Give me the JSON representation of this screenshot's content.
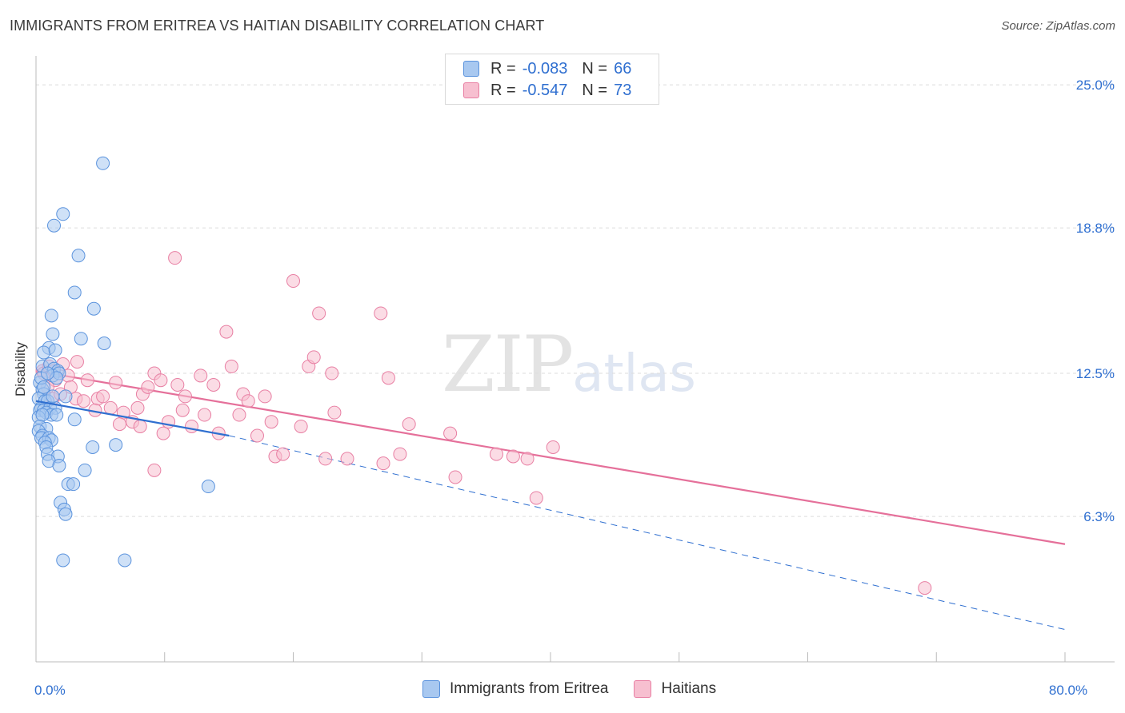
{
  "header": {
    "title": "IMMIGRANTS FROM ERITREA VS HAITIAN DISABILITY CORRELATION CHART",
    "source": "Source: ZipAtlas.com"
  },
  "watermark": {
    "zip": "ZIP",
    "atlas": "atlas"
  },
  "legend": {
    "r_label": "R =",
    "n_label": "N =",
    "rows": [
      {
        "r": "-0.083",
        "n": "66",
        "color": "#a8c8f0"
      },
      {
        "r": "-0.547",
        "n": "73",
        "color": "#f7b8cb"
      }
    ]
  },
  "colors": {
    "eritrea_fill": "#a8c8f0",
    "eritrea_stroke": "#5b93dd",
    "eritrea_line": "#2f6fd0",
    "haitian_fill": "#f7bfd0",
    "haitian_stroke": "#e87fa3",
    "haitian_line": "#e5709a",
    "grid": "#dcdcdc",
    "axis_label": "#2f6fd0"
  },
  "chart_data": {
    "type": "scatter",
    "title": "IMMIGRANTS FROM ERITREA VS HAITIAN DISABILITY CORRELATION CHART",
    "xlabel": "",
    "ylabel": "Disability",
    "xlim": [
      0,
      80
    ],
    "ylim": [
      0,
      26.25
    ],
    "x_tick_labels": [
      {
        "value": 0,
        "label": "0.0%"
      },
      {
        "value": 80,
        "label": "80.0%"
      }
    ],
    "y_ticks": [
      {
        "value": 6.3,
        "label": "6.3%"
      },
      {
        "value": 12.5,
        "label": "12.5%"
      },
      {
        "value": 18.8,
        "label": "18.8%"
      },
      {
        "value": 25.0,
        "label": "25.0%"
      }
    ],
    "grid": true,
    "series": [
      {
        "name": "Immigrants from Eritrea",
        "R": -0.083,
        "N": 66,
        "trend": {
          "x0": 0,
          "y0": 11.3,
          "x1": 15,
          "y1": 9.8,
          "dash_to_x": 80,
          "dash_to_y": 1.4
        },
        "points": [
          [
            5.2,
            21.6
          ],
          [
            2.1,
            19.4
          ],
          [
            1.4,
            18.9
          ],
          [
            3.3,
            17.6
          ],
          [
            3.0,
            16.0
          ],
          [
            4.5,
            15.3
          ],
          [
            1.2,
            15.0
          ],
          [
            1.3,
            14.2
          ],
          [
            3.5,
            14.0
          ],
          [
            1.0,
            13.6
          ],
          [
            5.3,
            13.8
          ],
          [
            0.6,
            13.4
          ],
          [
            1.5,
            13.5
          ],
          [
            0.5,
            12.8
          ],
          [
            1.1,
            12.9
          ],
          [
            1.4,
            12.7
          ],
          [
            1.7,
            12.6
          ],
          [
            1.3,
            12.4
          ],
          [
            1.8,
            12.5
          ],
          [
            1.6,
            12.3
          ],
          [
            0.3,
            12.1
          ],
          [
            0.5,
            11.8
          ],
          [
            0.6,
            11.6
          ],
          [
            0.2,
            11.4
          ],
          [
            0.7,
            11.3
          ],
          [
            0.9,
            11.3
          ],
          [
            2.3,
            11.5
          ],
          [
            0.4,
            11.0
          ],
          [
            0.3,
            10.9
          ],
          [
            0.6,
            10.9
          ],
          [
            1.1,
            11.0
          ],
          [
            1.5,
            11.0
          ],
          [
            0.8,
            10.8
          ],
          [
            1.2,
            10.7
          ],
          [
            0.2,
            10.6
          ],
          [
            0.5,
            10.7
          ],
          [
            3.0,
            10.5
          ],
          [
            0.3,
            10.2
          ],
          [
            0.8,
            10.1
          ],
          [
            0.2,
            10.0
          ],
          [
            0.5,
            9.8
          ],
          [
            0.4,
            9.7
          ],
          [
            1.0,
            9.7
          ],
          [
            1.2,
            9.6
          ],
          [
            0.7,
            9.5
          ],
          [
            0.8,
            9.3
          ],
          [
            4.4,
            9.3
          ],
          [
            6.2,
            9.4
          ],
          [
            0.9,
            9.0
          ],
          [
            1.7,
            8.9
          ],
          [
            1.0,
            8.7
          ],
          [
            1.8,
            8.5
          ],
          [
            3.8,
            8.3
          ],
          [
            2.5,
            7.7
          ],
          [
            2.9,
            7.7
          ],
          [
            13.4,
            7.6
          ],
          [
            1.9,
            6.9
          ],
          [
            2.2,
            6.6
          ],
          [
            2.3,
            6.4
          ],
          [
            2.1,
            4.4
          ],
          [
            6.9,
            4.4
          ],
          [
            0.4,
            12.3
          ],
          [
            0.9,
            12.5
          ],
          [
            1.3,
            11.5
          ],
          [
            1.6,
            10.7
          ],
          [
            0.6,
            11.9
          ]
        ]
      },
      {
        "name": "Haitians",
        "R": -0.547,
        "N": 73,
        "trend": {
          "x0": 0,
          "y0": 12.6,
          "x1": 80,
          "y1": 5.1
        },
        "points": [
          [
            0.5,
            12.6
          ],
          [
            0.6,
            12.5
          ],
          [
            1.0,
            12.8
          ],
          [
            1.4,
            12.6
          ],
          [
            2.1,
            12.9
          ],
          [
            1.5,
            12.2
          ],
          [
            2.5,
            12.4
          ],
          [
            0.9,
            11.9
          ],
          [
            2.7,
            11.9
          ],
          [
            1.3,
            11.4
          ],
          [
            3.1,
            11.4
          ],
          [
            4.0,
            12.2
          ],
          [
            3.7,
            11.3
          ],
          [
            4.8,
            11.4
          ],
          [
            5.2,
            11.5
          ],
          [
            6.2,
            12.1
          ],
          [
            5.8,
            11.0
          ],
          [
            6.8,
            10.8
          ],
          [
            7.5,
            10.4
          ],
          [
            7.9,
            11.0
          ],
          [
            8.3,
            11.6
          ],
          [
            8.7,
            11.9
          ],
          [
            9.2,
            12.5
          ],
          [
            9.7,
            12.2
          ],
          [
            6.5,
            10.3
          ],
          [
            8.1,
            10.2
          ],
          [
            9.9,
            9.9
          ],
          [
            10.3,
            10.4
          ],
          [
            11.0,
            12.0
          ],
          [
            11.6,
            11.5
          ],
          [
            11.4,
            10.9
          ],
          [
            12.1,
            10.2
          ],
          [
            12.8,
            12.4
          ],
          [
            13.1,
            10.7
          ],
          [
            13.8,
            12.0
          ],
          [
            14.2,
            9.9
          ],
          [
            14.8,
            14.3
          ],
          [
            15.2,
            12.8
          ],
          [
            15.8,
            10.7
          ],
          [
            16.1,
            11.6
          ],
          [
            16.5,
            11.3
          ],
          [
            17.2,
            9.8
          ],
          [
            17.8,
            11.5
          ],
          [
            18.3,
            10.4
          ],
          [
            18.6,
            8.9
          ],
          [
            19.2,
            9.0
          ],
          [
            20.0,
            16.5
          ],
          [
            20.6,
            10.2
          ],
          [
            21.2,
            12.8
          ],
          [
            21.6,
            13.2
          ],
          [
            22.0,
            15.1
          ],
          [
            23.2,
            10.8
          ],
          [
            23.0,
            12.5
          ],
          [
            22.5,
            8.8
          ],
          [
            27.0,
            8.6
          ],
          [
            26.8,
            15.1
          ],
          [
            27.4,
            12.3
          ],
          [
            28.3,
            9.0
          ],
          [
            29.0,
            10.3
          ],
          [
            32.2,
            9.9
          ],
          [
            32.6,
            8.0
          ],
          [
            35.8,
            9.0
          ],
          [
            37.1,
            8.9
          ],
          [
            38.2,
            8.8
          ],
          [
            38.9,
            7.1
          ],
          [
            40.2,
            9.3
          ],
          [
            10.8,
            17.5
          ],
          [
            3.2,
            13.0
          ],
          [
            1.9,
            11.6
          ],
          [
            4.6,
            10.9
          ],
          [
            9.2,
            8.3
          ],
          [
            69.1,
            3.2
          ],
          [
            24.2,
            8.8
          ]
        ]
      }
    ]
  },
  "bottom_legend": [
    {
      "label": "Immigrants from Eritrea"
    },
    {
      "label": "Haitians"
    }
  ]
}
